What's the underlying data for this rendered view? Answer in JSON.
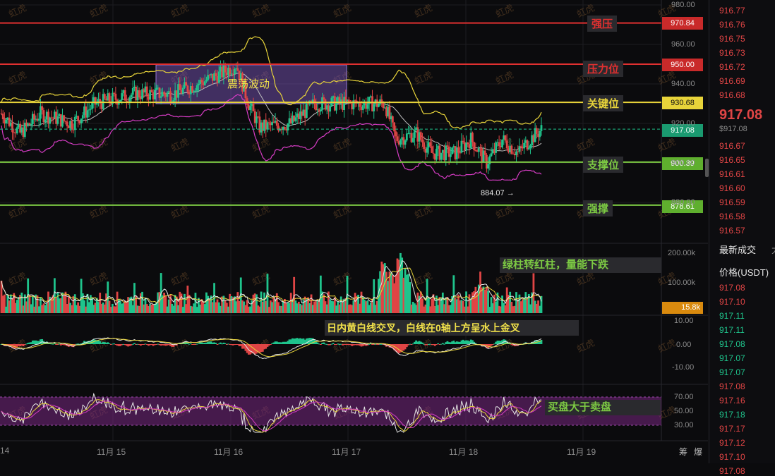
{
  "watermark": "虹虎",
  "levels": [
    {
      "price": 970.84,
      "label": "强压",
      "color": "#e03030"
    },
    {
      "price": 950.0,
      "label": "压力位",
      "color": "#e03030"
    },
    {
      "price": 930.68,
      "label": "关键位",
      "color": "#e8d43a"
    },
    {
      "price": 900.39,
      "label": "支撑位",
      "color": "#7cc943"
    },
    {
      "price": 878.61,
      "label": "强撑",
      "color": "#7cc943"
    }
  ],
  "level_values": [
    "970.84",
    "950.00",
    "930.68",
    "900.39",
    "878.61"
  ],
  "current_price_label": "917.08",
  "range_box_label": "震荡波动",
  "low_marker": "884.07 →",
  "price_axis": [
    "980.00",
    "960.00",
    "940.00",
    "920.00",
    "900.00",
    "880.00"
  ],
  "volume_axis": [
    "200.00k",
    "100.00k"
  ],
  "volume_badge": "15.8k",
  "volume_note": "绿柱转红柱，量能下跌",
  "macd_axis": [
    "10.00",
    "0.00",
    "-10.00"
  ],
  "macd_note": "日内黄白线交叉，白线在0轴上方呈水上金叉",
  "rsi_axis": [
    "70.00",
    "50.00",
    "30.00"
  ],
  "rsi_note": "买盘大于卖盘",
  "time_axis": [
    "14",
    "11月 15",
    "11月 16",
    "11月 17",
    "11月 18",
    "11月 19"
  ],
  "corner_labels": [
    "筹",
    "爆"
  ],
  "colors": {
    "up": "#e04545",
    "down": "#1fc48c",
    "bg": "#0b0b0d"
  },
  "order_book": {
    "asks": [
      "916.77",
      "916.76",
      "916.75",
      "916.73",
      "916.72",
      "916.69",
      "916.68"
    ],
    "last_price": "917.08",
    "last_price_usd": "$917.08",
    "bids": [
      "916.67",
      "916.65",
      "916.61",
      "916.60",
      "916.59",
      "916.58",
      "916.57"
    ]
  },
  "trades_header": "最新成交",
  "trades_header_extra": "大",
  "price_column_header": "价格(USDT)",
  "trades": [
    {
      "p": "917.08",
      "side": "up"
    },
    {
      "p": "917.10",
      "side": "up"
    },
    {
      "p": "917.11",
      "side": "down"
    },
    {
      "p": "917.11",
      "side": "down"
    },
    {
      "p": "917.08",
      "side": "down"
    },
    {
      "p": "917.07",
      "side": "down"
    },
    {
      "p": "917.07",
      "side": "down"
    },
    {
      "p": "917.08",
      "side": "up"
    },
    {
      "p": "917.16",
      "side": "up"
    },
    {
      "p": "917.18",
      "side": "down"
    },
    {
      "p": "917.17",
      "side": "up"
    },
    {
      "p": "917.12",
      "side": "up"
    },
    {
      "p": "917.10",
      "side": "up"
    },
    {
      "p": "917.08",
      "side": "up"
    }
  ]
}
